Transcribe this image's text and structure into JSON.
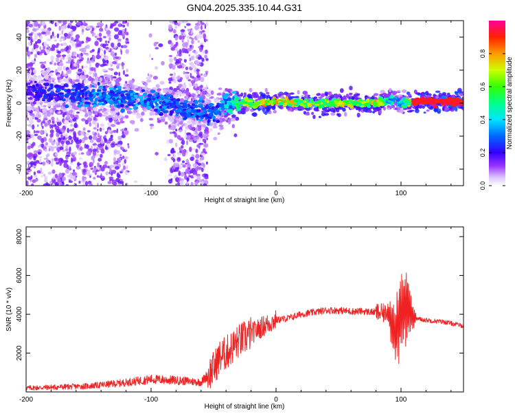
{
  "title": "GN04.2025.335.10.44.G31",
  "top_panel": {
    "xlabel": "Height of straight line (km)",
    "ylabel": "Frequency (Hz)",
    "xticks": [
      "-200",
      "-100",
      "0",
      "100"
    ],
    "yticks": [
      "40",
      "20",
      "0",
      "-20",
      "-40"
    ],
    "colorbar_label": "Normalized spectral amplitude",
    "colorbar_ticks": [
      "0.0",
      "0.2",
      "0.4",
      "0.6",
      "0.8"
    ]
  },
  "bottom_panel": {
    "xlabel": "Height of straight line (km)",
    "ylabel": "SNR (10 * v/v)",
    "xticks": [
      "-200",
      "-100",
      "0",
      "100"
    ],
    "yticks": [
      "8000",
      "6000",
      "4000",
      "2000"
    ]
  },
  "colors": {
    "snr_line": "#ee2222",
    "frame": "#000000",
    "colormap": [
      "#ffffff",
      "#cc99ff",
      "#7f00ff",
      "#0000ff",
      "#00ccff",
      "#00ff66",
      "#66ff00",
      "#ffcc00",
      "#ff3300",
      "#ff00aa"
    ]
  },
  "chart_data": [
    {
      "type": "heatmap",
      "title": "GN04.2025.335.10.44.G31",
      "xlabel": "Height of straight line (km)",
      "ylabel": "Frequency (Hz)",
      "xlim": [
        -200,
        150
      ],
      "ylim": [
        -50,
        50
      ],
      "colorbar_range": [
        0,
        1
      ],
      "colorbar_label": "Normalized spectral amplitude",
      "ridge": {
        "x": [
          -200,
          -180,
          -160,
          -140,
          -120,
          -100,
          -80,
          -60,
          -50,
          -40,
          -30,
          -20,
          -10,
          0,
          20,
          40,
          60,
          80,
          95,
          100,
          110,
          150
        ],
        "frequency": [
          8,
          6,
          5,
          4,
          3,
          1,
          -2,
          -5,
          -6,
          0,
          0,
          0,
          0,
          1,
          0,
          0,
          0,
          0,
          2,
          0,
          1,
          1
        ],
        "amplitude": [
          0.2,
          0.25,
          0.3,
          0.35,
          0.35,
          0.35,
          0.3,
          0.35,
          0.3,
          0.4,
          0.6,
          0.7,
          0.85,
          0.8,
          0.7,
          0.7,
          0.7,
          0.75,
          0.4,
          0.5,
          0.9,
          0.95
        ]
      },
      "grid": false,
      "legend": "right"
    },
    {
      "type": "line",
      "xlabel": "Height of straight line (km)",
      "ylabel": "SNR (10 * v/v)",
      "xlim": [
        -200,
        150
      ],
      "ylim": [
        0,
        8500
      ],
      "series": [
        {
          "x": [
            -200,
            -175,
            -150,
            -125,
            -100,
            -80,
            -60,
            -50,
            -45,
            -40,
            -30,
            -20,
            -10,
            0,
            10,
            20,
            30,
            40,
            50,
            60,
            70,
            80,
            90,
            95,
            100,
            105,
            110,
            120,
            135,
            150
          ],
          "values": [
            200,
            250,
            300,
            450,
            650,
            600,
            500,
            1200,
            1800,
            2000,
            2600,
            3000,
            3400,
            3700,
            3800,
            4000,
            4100,
            4200,
            4200,
            4150,
            4150,
            4100,
            4000,
            3000,
            4000,
            4500,
            3800,
            3700,
            3600,
            3400
          ]
        }
      ],
      "grid": false
    }
  ]
}
